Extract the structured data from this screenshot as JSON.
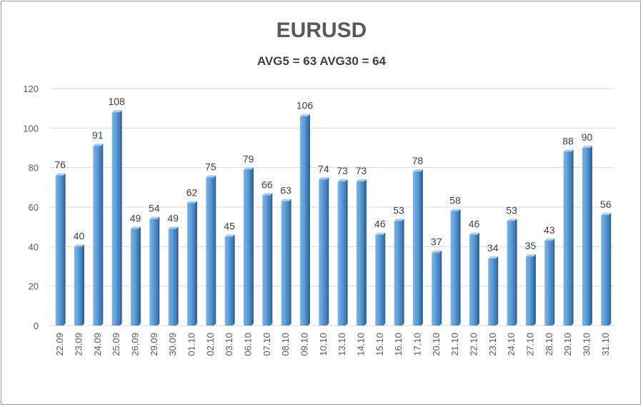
{
  "chart_data": {
    "type": "bar",
    "title": "EURUSD",
    "subtitle": "AVG5 = 63 AVG30 = 64",
    "xlabel": "",
    "ylabel": "",
    "ylim": [
      0,
      120
    ],
    "yticks": [
      0,
      20,
      40,
      60,
      80,
      100,
      120
    ],
    "grid": true,
    "legend": "none",
    "bar_color": "#5b9bd5",
    "categories": [
      "22.09",
      "23.09",
      "24.09",
      "25.09",
      "26.09",
      "29.09",
      "30.09",
      "01.10",
      "02.10",
      "03.10",
      "06.10",
      "07.10",
      "08.10",
      "09.10",
      "10.10",
      "13.10",
      "14.10",
      "15.10",
      "16.10",
      "17.10",
      "20.10",
      "21.10",
      "22.10",
      "23.10",
      "24.10",
      "27.10",
      "28.10",
      "29.10",
      "30.10",
      "31.10"
    ],
    "values": [
      76,
      40,
      91,
      108,
      49,
      54,
      49,
      62,
      75,
      45,
      79,
      66,
      63,
      106,
      74,
      73,
      73,
      46,
      53,
      78,
      37,
      58,
      46,
      34,
      53,
      35,
      43,
      88,
      90,
      56
    ]
  }
}
